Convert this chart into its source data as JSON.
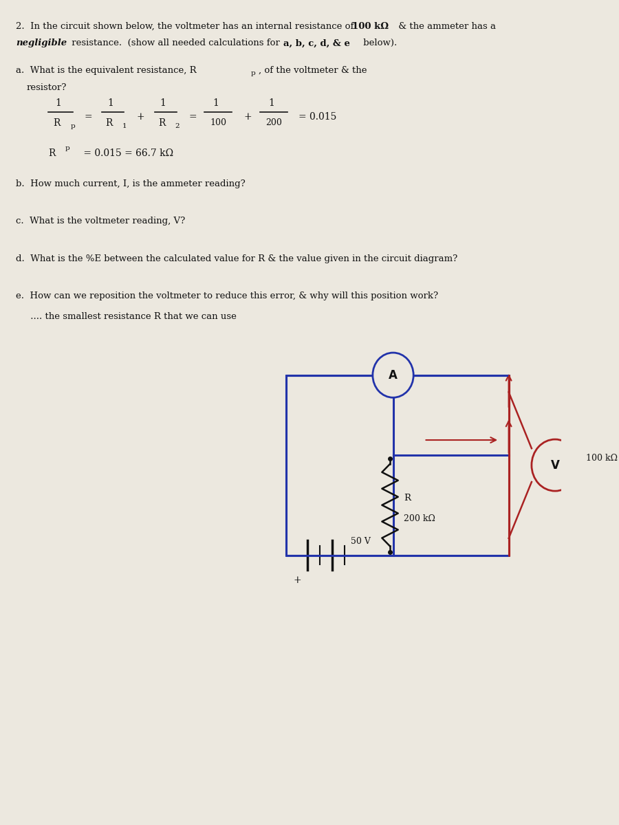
{
  "background_color": "#e8e4dc",
  "page_background": "#f0ede6",
  "title_text": "2.  In the circuit shown below, the voltmeter has an internal resistance of 100 kΩ & the ammeter has a\n    negligible resistance.  (show all needed calculations for a, b, c, d, & e below).",
  "part_a_label": "a.  What is the equivalent resistance, R",
  "part_a_label2": ", of the voltmeter & the",
  "part_a_label3": "    resistor?",
  "part_a_sub": "p",
  "calc_line1": "1",
  "calc_line1b": "R",
  "calc_line1c": "p",
  "calc_frac1": "1",
  "calc_frac1b": "R",
  "calc_frac1c": "1",
  "calc_plus": "+",
  "calc_frac2": "1",
  "calc_frac2b": "R",
  "calc_frac2c": "2",
  "calc_eq": "=",
  "calc_vals": "1",
  "calc_vals_b": "100",
  "calc_vals_plus": "+",
  "calc_vals_c": "1",
  "calc_vals_d": "200",
  "calc_vals_e": "= 0.015",
  "calc_rp": "R",
  "calc_rp_sub": "p",
  "calc_rp_eq": "= 0.015 = 66.7 kΩ",
  "part_b_label": "b.  How much current, I, is the ammeter reading?",
  "part_c_label": "c.  What is the voltmeter reading, V?",
  "part_d_label": "d.  What is the %E between the calculated value for R & the value given in the circuit diagram?",
  "part_e_label": "e.  How can we reposition the voltmeter to reduce this error, & why will this position work?",
  "part_e_label2": "     .... the smallest resistance R that we can use",
  "circuit_box_color": "#2233aa",
  "circuit_arrow_color": "#aa2222",
  "ammeter_label": "A",
  "voltmeter_label": "V",
  "voltmeter_resistance": "100 kΩ",
  "resistor_label": "R",
  "resistor_value": "200 kΩ",
  "battery_label": "+",
  "battery_value": "50 V",
  "text_color": "#1a1a1a",
  "blue_text": "#2233aa",
  "bold_color": "#111111"
}
